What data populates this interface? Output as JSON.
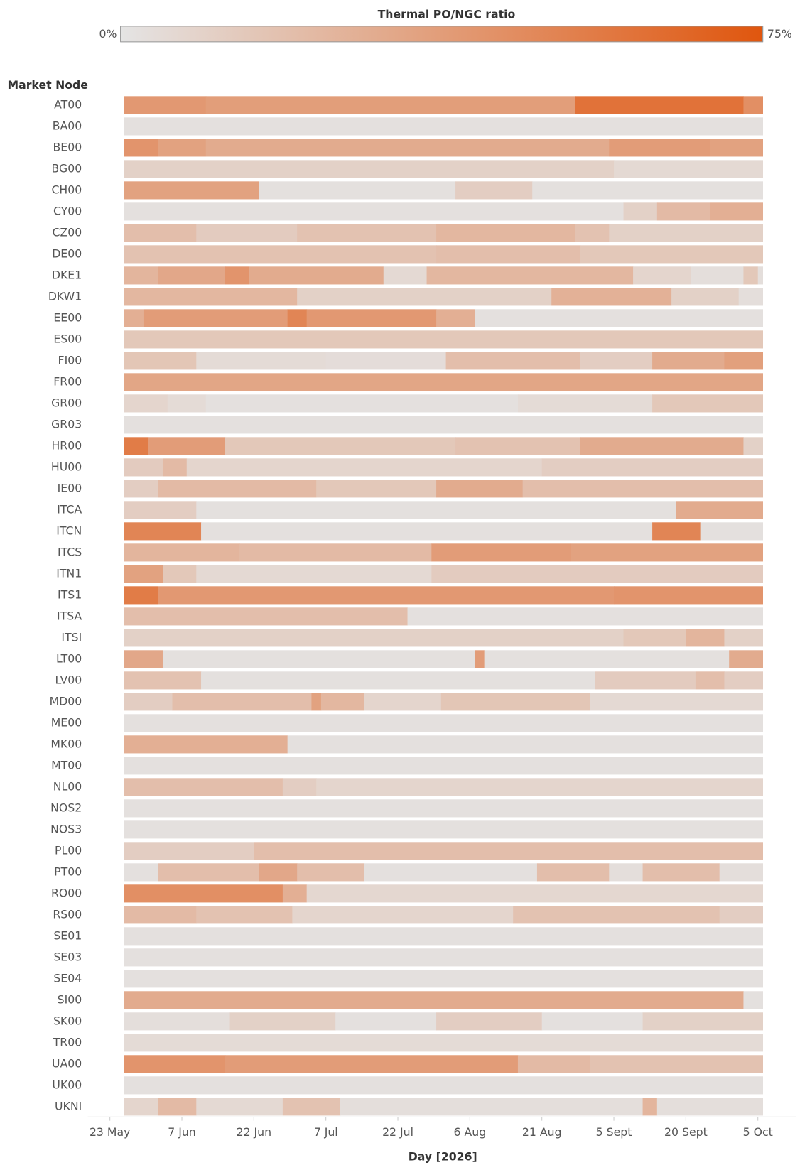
{
  "chart_data": {
    "type": "heatmap",
    "title": "Thermal PO/NGC ratio",
    "color_scale": {
      "min": {
        "value": 0,
        "label": "0%"
      },
      "max": {
        "value": 75,
        "label": "75%"
      },
      "colors": [
        "#e4e4e4",
        "#e0560e"
      ]
    },
    "row_axis_label": "Market Node",
    "x_label": "Day [2026]",
    "xlim": [
      -4.6,
      143
    ],
    "xticks": [
      {
        "value": 0,
        "label": "23 May"
      },
      {
        "value": 15,
        "label": "7 Jun"
      },
      {
        "value": 30,
        "label": "22 Jun"
      },
      {
        "value": 45,
        "label": "7 Jul"
      },
      {
        "value": 60,
        "label": "22 Jul"
      },
      {
        "value": 75,
        "label": "6 Aug"
      },
      {
        "value": 90,
        "label": "21 Aug"
      },
      {
        "value": 105,
        "label": "5 Sept"
      },
      {
        "value": 120,
        "label": "20 Sept"
      },
      {
        "value": 135,
        "label": "5 Oct"
      }
    ],
    "rows": [
      {
        "name": "AT00",
        "segments": [
          [
            3,
            20,
            40
          ],
          [
            20,
            97,
            37
          ],
          [
            97,
            132,
            60
          ],
          [
            132,
            136,
            45
          ]
        ]
      },
      {
        "name": "BA00",
        "segments": [
          [
            3,
            136,
            2
          ]
        ]
      },
      {
        "name": "BE00",
        "segments": [
          [
            3,
            10,
            42
          ],
          [
            10,
            20,
            35
          ],
          [
            20,
            104,
            30
          ],
          [
            104,
            125,
            38
          ],
          [
            125,
            136,
            35
          ]
        ]
      },
      {
        "name": "BG00",
        "segments": [
          [
            3,
            105,
            10
          ],
          [
            105,
            136,
            6
          ]
        ]
      },
      {
        "name": "CH00",
        "segments": [
          [
            3,
            31,
            35
          ],
          [
            31,
            72,
            2
          ],
          [
            72,
            88,
            12
          ],
          [
            88,
            136,
            2
          ]
        ]
      },
      {
        "name": "CY00",
        "segments": [
          [
            3,
            107,
            2
          ],
          [
            107,
            114,
            10
          ],
          [
            114,
            125,
            22
          ],
          [
            125,
            136,
            28
          ]
        ]
      },
      {
        "name": "CZ00",
        "segments": [
          [
            3,
            18,
            20
          ],
          [
            18,
            39,
            13
          ],
          [
            39,
            68,
            18
          ],
          [
            68,
            97,
            24
          ],
          [
            97,
            104,
            18
          ],
          [
            104,
            136,
            10
          ]
        ]
      },
      {
        "name": "DE00",
        "segments": [
          [
            3,
            68,
            18
          ],
          [
            68,
            98,
            20
          ],
          [
            98,
            136,
            15
          ]
        ]
      },
      {
        "name": "DKE1",
        "segments": [
          [
            3,
            10,
            25
          ],
          [
            10,
            24,
            32
          ],
          [
            24,
            29,
            42
          ],
          [
            29,
            57,
            30
          ],
          [
            57,
            66,
            6
          ],
          [
            66,
            109,
            24
          ],
          [
            109,
            121,
            8
          ],
          [
            121,
            132,
            3
          ],
          [
            132,
            135,
            15
          ],
          [
            135,
            136,
            3
          ]
        ]
      },
      {
        "name": "DKW1",
        "segments": [
          [
            3,
            39,
            24
          ],
          [
            39,
            92,
            10
          ],
          [
            92,
            117,
            27
          ],
          [
            117,
            131,
            10
          ],
          [
            131,
            136,
            3
          ]
        ]
      },
      {
        "name": "EE00",
        "segments": [
          [
            3,
            7,
            28
          ],
          [
            7,
            37,
            38
          ],
          [
            37,
            41,
            50
          ],
          [
            41,
            68,
            40
          ],
          [
            68,
            76,
            28
          ],
          [
            76,
            136,
            2
          ]
        ]
      },
      {
        "name": "ES00",
        "segments": [
          [
            3,
            136,
            15
          ]
        ]
      },
      {
        "name": "FI00",
        "segments": [
          [
            3,
            18,
            16
          ],
          [
            18,
            45,
            5
          ],
          [
            45,
            70,
            4
          ],
          [
            70,
            98,
            20
          ],
          [
            98,
            113,
            12
          ],
          [
            113,
            128,
            30
          ],
          [
            128,
            136,
            36
          ]
        ]
      },
      {
        "name": "FR00",
        "segments": [
          [
            3,
            136,
            33
          ]
        ]
      },
      {
        "name": "GR00",
        "segments": [
          [
            3,
            12,
            8
          ],
          [
            12,
            20,
            5
          ],
          [
            20,
            85,
            2
          ],
          [
            85,
            113,
            5
          ],
          [
            113,
            136,
            15
          ]
        ]
      },
      {
        "name": "GR03",
        "segments": [
          [
            3,
            136,
            2
          ]
        ]
      },
      {
        "name": "HR00",
        "segments": [
          [
            3,
            8,
            55
          ],
          [
            8,
            24,
            38
          ],
          [
            24,
            72,
            15
          ],
          [
            72,
            98,
            18
          ],
          [
            98,
            132,
            30
          ],
          [
            132,
            136,
            10
          ]
        ]
      },
      {
        "name": "HU00",
        "segments": [
          [
            3,
            11,
            13
          ],
          [
            11,
            16,
            22
          ],
          [
            16,
            90,
            8
          ],
          [
            90,
            136,
            12
          ]
        ]
      },
      {
        "name": "IE00",
        "segments": [
          [
            3,
            10,
            12
          ],
          [
            10,
            43,
            22
          ],
          [
            43,
            68,
            15
          ],
          [
            68,
            86,
            30
          ],
          [
            86,
            136,
            20
          ]
        ]
      },
      {
        "name": "ITCA",
        "segments": [
          [
            3,
            18,
            12
          ],
          [
            18,
            118,
            2
          ],
          [
            118,
            136,
            30
          ]
        ]
      },
      {
        "name": "ITCN",
        "segments": [
          [
            3,
            19,
            50
          ],
          [
            19,
            113,
            2
          ],
          [
            113,
            123,
            50
          ],
          [
            123,
            136,
            2
          ]
        ]
      },
      {
        "name": "ITCS",
        "segments": [
          [
            3,
            27,
            25
          ],
          [
            27,
            67,
            22
          ],
          [
            67,
            96,
            38
          ],
          [
            96,
            136,
            35
          ]
        ]
      },
      {
        "name": "ITN1",
        "segments": [
          [
            3,
            11,
            35
          ],
          [
            11,
            18,
            15
          ],
          [
            18,
            67,
            6
          ],
          [
            67,
            136,
            13
          ]
        ]
      },
      {
        "name": "ITS1",
        "segments": [
          [
            3,
            10,
            55
          ],
          [
            10,
            105,
            40
          ],
          [
            105,
            136,
            42
          ]
        ]
      },
      {
        "name": "ITSA",
        "segments": [
          [
            3,
            62,
            20
          ],
          [
            62,
            136,
            2
          ]
        ]
      },
      {
        "name": "ITSI",
        "segments": [
          [
            3,
            107,
            10
          ],
          [
            107,
            120,
            15
          ],
          [
            120,
            128,
            25
          ],
          [
            128,
            136,
            10
          ]
        ]
      },
      {
        "name": "LT00",
        "segments": [
          [
            3,
            11,
            32
          ],
          [
            11,
            76,
            2
          ],
          [
            76,
            78,
            38
          ],
          [
            78,
            129,
            2
          ],
          [
            129,
            136,
            30
          ]
        ]
      },
      {
        "name": "LV00",
        "segments": [
          [
            3,
            19,
            18
          ],
          [
            19,
            101,
            2
          ],
          [
            101,
            122,
            13
          ],
          [
            122,
            128,
            20
          ],
          [
            128,
            136,
            12
          ]
        ]
      },
      {
        "name": "MD00",
        "segments": [
          [
            3,
            13,
            12
          ],
          [
            13,
            42,
            20
          ],
          [
            42,
            44,
            35
          ],
          [
            44,
            53,
            24
          ],
          [
            53,
            69,
            8
          ],
          [
            69,
            100,
            16
          ],
          [
            100,
            136,
            6
          ]
        ]
      },
      {
        "name": "ME00",
        "segments": [
          [
            3,
            136,
            2
          ]
        ]
      },
      {
        "name": "MK00",
        "segments": [
          [
            3,
            37,
            28
          ],
          [
            37,
            136,
            2
          ]
        ]
      },
      {
        "name": "MT00",
        "segments": [
          [
            3,
            136,
            2
          ]
        ]
      },
      {
        "name": "NL00",
        "segments": [
          [
            3,
            36,
            20
          ],
          [
            36,
            43,
            12
          ],
          [
            43,
            136,
            8
          ]
        ]
      },
      {
        "name": "NOS2",
        "segments": [
          [
            3,
            136,
            2
          ]
        ]
      },
      {
        "name": "NOS3",
        "segments": [
          [
            3,
            136,
            2
          ]
        ]
      },
      {
        "name": "PL00",
        "segments": [
          [
            3,
            30,
            12
          ],
          [
            30,
            136,
            20
          ]
        ]
      },
      {
        "name": "PT00",
        "segments": [
          [
            3,
            10,
            2
          ],
          [
            10,
            31,
            20
          ],
          [
            31,
            39,
            32
          ],
          [
            39,
            53,
            20
          ],
          [
            53,
            89,
            2
          ],
          [
            89,
            104,
            20
          ],
          [
            104,
            111,
            3
          ],
          [
            111,
            127,
            20
          ],
          [
            127,
            136,
            3
          ]
        ]
      },
      {
        "name": "RO00",
        "segments": [
          [
            3,
            36,
            45
          ],
          [
            36,
            41,
            28
          ],
          [
            41,
            136,
            7
          ]
        ]
      },
      {
        "name": "RS00",
        "segments": [
          [
            3,
            18,
            22
          ],
          [
            18,
            38,
            18
          ],
          [
            38,
            84,
            8
          ],
          [
            84,
            127,
            18
          ],
          [
            127,
            136,
            12
          ]
        ]
      },
      {
        "name": "SE01",
        "segments": [
          [
            3,
            136,
            2
          ]
        ]
      },
      {
        "name": "SE03",
        "segments": [
          [
            3,
            136,
            2
          ]
        ]
      },
      {
        "name": "SE04",
        "segments": [
          [
            3,
            136,
            2
          ]
        ]
      },
      {
        "name": "SI00",
        "segments": [
          [
            3,
            132,
            30
          ],
          [
            132,
            136,
            2
          ]
        ]
      },
      {
        "name": "SK00",
        "segments": [
          [
            3,
            25,
            3
          ],
          [
            25,
            47,
            10
          ],
          [
            47,
            68,
            2
          ],
          [
            68,
            90,
            12
          ],
          [
            90,
            111,
            2
          ],
          [
            111,
            136,
            10
          ]
        ]
      },
      {
        "name": "TR00",
        "segments": [
          [
            3,
            136,
            5
          ]
        ]
      },
      {
        "name": "UA00",
        "segments": [
          [
            3,
            24,
            42
          ],
          [
            24,
            85,
            38
          ],
          [
            85,
            100,
            22
          ],
          [
            100,
            136,
            18
          ]
        ]
      },
      {
        "name": "UK00",
        "segments": [
          [
            3,
            136,
            2
          ]
        ]
      },
      {
        "name": "UKNI",
        "segments": [
          [
            3,
            10,
            8
          ],
          [
            10,
            18,
            22
          ],
          [
            18,
            36,
            6
          ],
          [
            36,
            48,
            18
          ],
          [
            48,
            111,
            3
          ],
          [
            111,
            114,
            25
          ],
          [
            114,
            136,
            3
          ]
        ]
      }
    ]
  }
}
